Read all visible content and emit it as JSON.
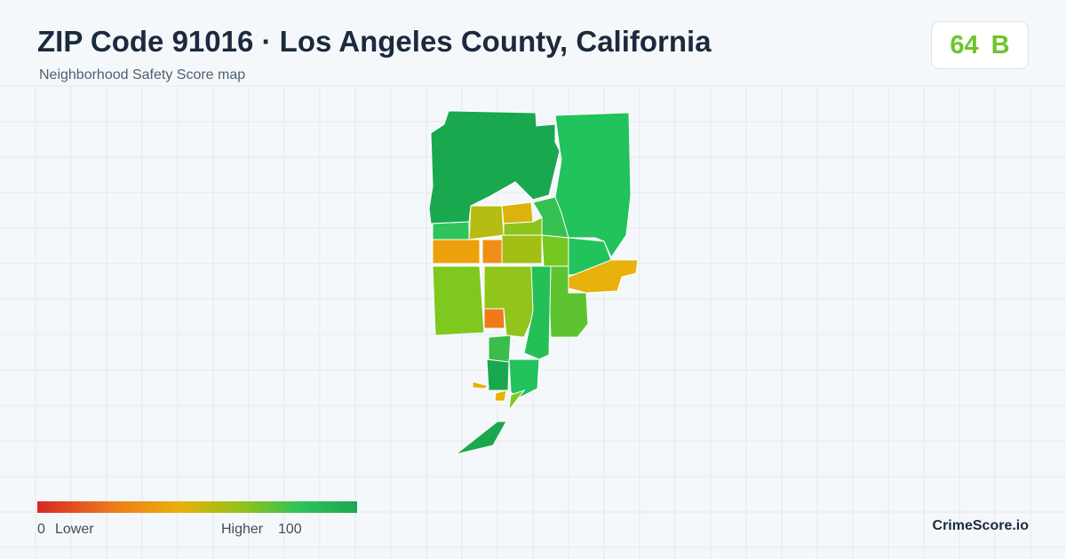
{
  "header": {
    "title": "ZIP Code 91016 · Los Angeles County, California",
    "subtitle": "Neighborhood Safety Score map"
  },
  "score": {
    "value": 64,
    "grade": "B"
  },
  "legend": {
    "min": 0,
    "min_label": "Lower",
    "max_label": "Higher",
    "max": 100
  },
  "brand": "CrimeScore.io"
}
